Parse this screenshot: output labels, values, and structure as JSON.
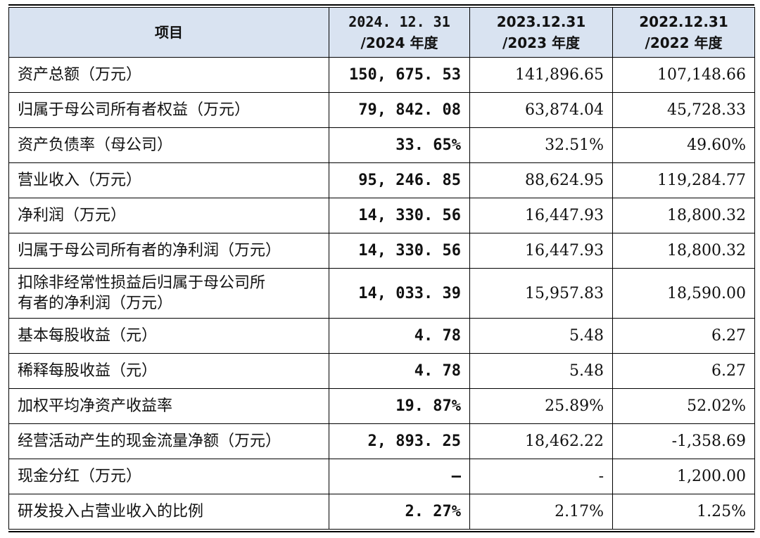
{
  "table": {
    "headers": {
      "item": "项目",
      "col2024_line1": "2024. 12. 31",
      "col2024_line2": "/2024 年度",
      "col2023_line1": "2023.12.31",
      "col2023_line2": "/2023 年度",
      "col2022_line1": "2022.12.31",
      "col2022_line2": "/2022 年度"
    },
    "rows": [
      {
        "label": "资产总额（万元）",
        "v2024": "150, 675. 53",
        "v2023": "141,896.65",
        "v2022": "107,148.66"
      },
      {
        "label": "归属于母公司所有者权益（万元）",
        "v2024": "79, 842. 08",
        "v2023": "63,874.04",
        "v2022": "45,728.33"
      },
      {
        "label": "资产负债率（母公司）",
        "v2024": "33. 65%",
        "v2023": "32.51%",
        "v2022": "49.60%"
      },
      {
        "label": "营业收入（万元）",
        "v2024": "95, 246. 85",
        "v2023": "88,624.95",
        "v2022": "119,284.77"
      },
      {
        "label": "净利润（万元）",
        "v2024": "14, 330. 56",
        "v2023": "16,447.93",
        "v2022": "18,800.32"
      },
      {
        "label": "归属于母公司所有者的净利润（万元）",
        "v2024": "14, 330. 56",
        "v2023": "16,447.93",
        "v2022": "18,800.32"
      },
      {
        "label_line1": "扣除非经常性损益后归属于母公司所",
        "label_line2": "有者的净利润（万元）",
        "v2024": "14, 033. 39",
        "v2023": "15,957.83",
        "v2022": "18,590.00"
      },
      {
        "label": "基本每股收益（元）",
        "v2024": "4. 78",
        "v2023": "5.48",
        "v2022": "6.27"
      },
      {
        "label": "稀释每股收益（元）",
        "v2024": "4. 78",
        "v2023": "5.48",
        "v2022": "6.27"
      },
      {
        "label": "加权平均净资产收益率",
        "v2024": "19. 87%",
        "v2023": "25.89%",
        "v2022": "52.02%"
      },
      {
        "label": "经营活动产生的现金流量净额（万元）",
        "v2024": "2, 893. 25",
        "v2023": "18,462.22",
        "v2022": "-1,358.69"
      },
      {
        "label": "现金分红（万元）",
        "v2024": "–",
        "v2023": "-",
        "v2022": "1,200.00"
      },
      {
        "label": "研发投入占营业收入的比例",
        "v2024": "2. 27%",
        "v2023": "2.17%",
        "v2022": "1.25%"
      }
    ]
  },
  "colors": {
    "header_bg": "#d9e3f1",
    "border": "#000000",
    "text": "#111111"
  }
}
